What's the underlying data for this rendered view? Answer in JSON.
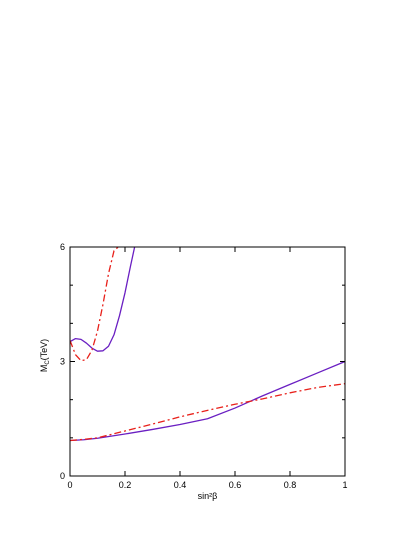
{
  "chart_data": {
    "type": "line",
    "title": "",
    "xlabel": "sin²β",
    "ylabel_main": "M",
    "ylabel_sub": "C",
    "ylabel_unit": "(TeV)",
    "xlim": [
      0,
      1
    ],
    "ylim": [
      0,
      6
    ],
    "x_ticks": [
      0,
      0.2,
      0.4,
      0.6,
      0.8,
      1
    ],
    "x_tick_labels": [
      "0",
      "0.2",
      "0.4",
      "0.6",
      "0.8",
      "1"
    ],
    "y_ticks": [
      0,
      3,
      6
    ],
    "y_tick_labels": [
      "0",
      "3",
      "6"
    ],
    "y_minor_ticks": [
      1,
      2,
      4,
      5
    ],
    "grid": false,
    "legend": "none",
    "series": [
      {
        "style": "solid",
        "color": "#6a1fc2",
        "segments": [
          [
            [
              0,
              3.52
            ],
            [
              0.02,
              3.6
            ],
            [
              0.04,
              3.58
            ],
            [
              0.06,
              3.48
            ],
            [
              0.08,
              3.35
            ],
            [
              0.1,
              3.27
            ],
            [
              0.12,
              3.28
            ],
            [
              0.14,
              3.4
            ],
            [
              0.16,
              3.7
            ],
            [
              0.18,
              4.2
            ],
            [
              0.2,
              4.8
            ],
            [
              0.22,
              5.5
            ],
            [
              0.235,
              6.0
            ]
          ],
          [
            [
              0,
              0.93
            ],
            [
              0.05,
              0.95
            ],
            [
              0.1,
              0.99
            ],
            [
              0.2,
              1.1
            ],
            [
              0.3,
              1.22
            ],
            [
              0.4,
              1.35
            ],
            [
              0.5,
              1.5
            ],
            [
              0.6,
              1.78
            ],
            [
              0.7,
              2.1
            ],
            [
              0.8,
              2.4
            ],
            [
              0.9,
              2.7
            ],
            [
              1.0,
              3.0
            ]
          ]
        ]
      },
      {
        "style": "dash-dot",
        "color": "#e8201a",
        "segments": [
          [
            [
              0,
              3.55
            ],
            [
              0.02,
              3.18
            ],
            [
              0.04,
              3.02
            ],
            [
              0.06,
              3.05
            ],
            [
              0.08,
              3.3
            ],
            [
              0.1,
              3.8
            ],
            [
              0.12,
              4.5
            ],
            [
              0.14,
              5.3
            ],
            [
              0.16,
              5.9
            ],
            [
              0.175,
              6.0
            ]
          ],
          [
            [
              0,
              0.93
            ],
            [
              0.05,
              0.96
            ],
            [
              0.1,
              1.0
            ],
            [
              0.2,
              1.18
            ],
            [
              0.3,
              1.36
            ],
            [
              0.4,
              1.55
            ],
            [
              0.5,
              1.72
            ],
            [
              0.6,
              1.88
            ],
            [
              0.7,
              2.02
            ],
            [
              0.8,
              2.18
            ],
            [
              0.9,
              2.32
            ],
            [
              1.0,
              2.42
            ]
          ]
        ]
      }
    ]
  }
}
